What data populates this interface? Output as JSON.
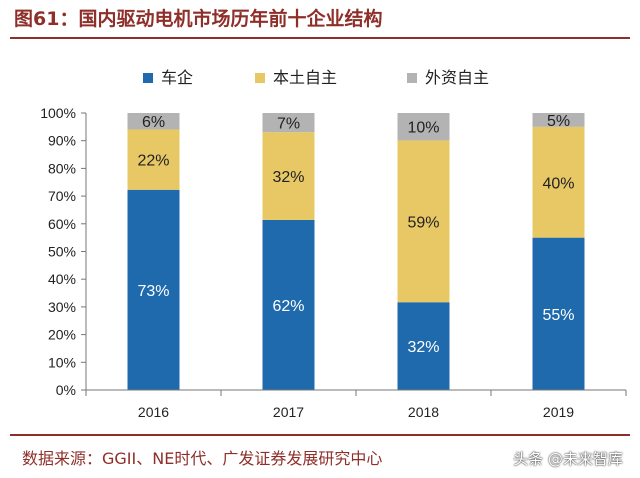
{
  "header": {
    "title": "图61：国内驱动电机市场历年前十企业结构"
  },
  "footer": {
    "source": "数据来源：GGII、NE时代、广发证券发展研究中心",
    "watermark": "头条 @未来智库"
  },
  "chart_data": {
    "type": "bar",
    "stacked": true,
    "categories": [
      "2016",
      "2017",
      "2018",
      "2019"
    ],
    "series": [
      {
        "name": "车企",
        "color": "#1f6aad",
        "values": [
          73,
          62,
          32,
          55
        ],
        "labels": [
          "73%",
          "62%",
          "32%",
          "55%"
        ]
      },
      {
        "name": "本土自主",
        "color": "#e8c865",
        "values": [
          22,
          32,
          59,
          40
        ],
        "labels": [
          "22%",
          "32%",
          "59%",
          "40%"
        ]
      },
      {
        "name": "外资自主",
        "color": "#b3b3b3",
        "values": [
          6,
          7,
          10,
          5
        ],
        "labels": [
          "6%",
          "7%",
          "10%",
          "5%"
        ]
      }
    ],
    "y_ticks": [
      "0%",
      "10%",
      "20%",
      "30%",
      "40%",
      "50%",
      "60%",
      "70%",
      "80%",
      "90%",
      "100%"
    ],
    "ylim": [
      0,
      100
    ],
    "grid": false,
    "legend_position": "top"
  }
}
